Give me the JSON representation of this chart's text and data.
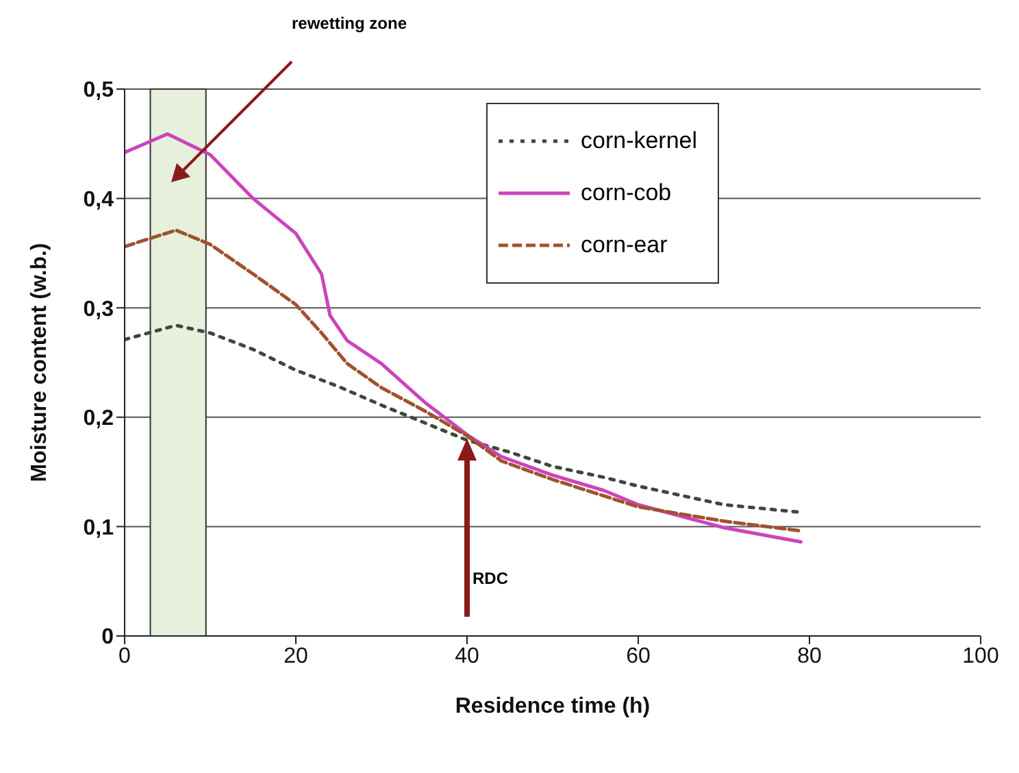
{
  "chart_data": {
    "type": "line",
    "xlabel": "Residence time (h)",
    "ylabel": "Moisture content (w.b.)",
    "xlim": [
      0,
      100
    ],
    "xticks": [
      0,
      20,
      40,
      60,
      80,
      100
    ],
    "ylim": [
      0,
      0.5
    ],
    "yticks": [
      0,
      {
        "value": 0.1,
        "label": "0,1"
      },
      {
        "value": 0.2,
        "label": "0,2"
      },
      {
        "value": 0.3,
        "label": "0,3"
      },
      {
        "value": 0.4,
        "label": "0,4"
      },
      {
        "value": 0.5,
        "label": "0,5"
      }
    ],
    "grid": "y",
    "legend": "top right",
    "marker": "none",
    "series": [
      {
        "name": "corn-kernel",
        "color": "#3a4a3a",
        "line_style": "dotted",
        "x": [
          0,
          6,
          10,
          15,
          20,
          25,
          30,
          35,
          40,
          45,
          50,
          56,
          60,
          70,
          79
        ],
        "values": [
          0.271,
          0.284,
          0.277,
          0.262,
          0.243,
          0.228,
          0.211,
          0.195,
          0.179,
          0.168,
          0.155,
          0.145,
          0.137,
          0.12,
          0.113
        ]
      },
      {
        "name": "corn-cob",
        "color": "#cc44bb",
        "line_style": "solid",
        "x": [
          0,
          5,
          10,
          15,
          20,
          23,
          24,
          26,
          30,
          35,
          40,
          44,
          50,
          56,
          60,
          70,
          79
        ],
        "values": [
          0.442,
          0.459,
          0.44,
          0.4,
          0.368,
          0.331,
          0.293,
          0.27,
          0.249,
          0.214,
          0.184,
          0.164,
          0.147,
          0.133,
          0.12,
          0.099,
          0.086
        ]
      },
      {
        "name": "corn-ear",
        "color": "#a0522d",
        "line_style": "dashed",
        "x": [
          0,
          6,
          10,
          15,
          20,
          23,
          26,
          30,
          35,
          40,
          44,
          50,
          56,
          60,
          70,
          79
        ],
        "values": [
          0.356,
          0.371,
          0.358,
          0.331,
          0.303,
          0.277,
          0.249,
          0.227,
          0.206,
          0.183,
          0.16,
          0.143,
          0.128,
          0.118,
          0.105,
          0.096
        ]
      }
    ],
    "bands": [
      {
        "axis": "x",
        "from": 3,
        "to": 9.5,
        "color": "#e6f0dc"
      }
    ],
    "annotations": [
      "rewetting zone",
      "RDC"
    ]
  }
}
